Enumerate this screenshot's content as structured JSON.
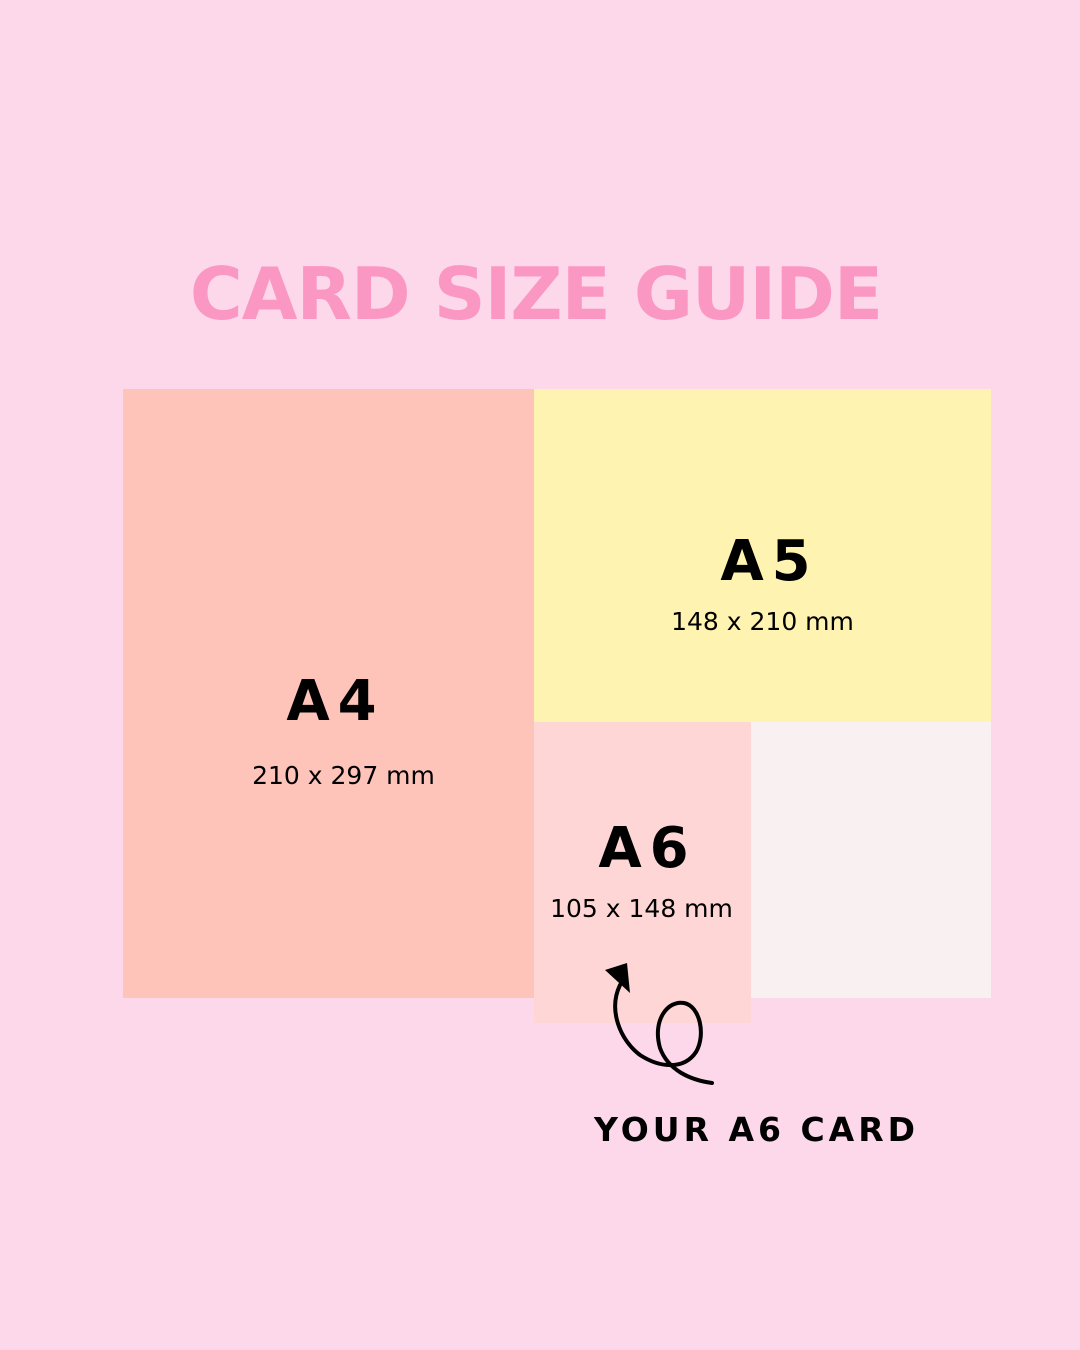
{
  "title": "CARD SIZE GUIDE",
  "sizes": [
    {
      "name": "A4",
      "dimensions": "210 x 297 mm",
      "color": "#fec3b9"
    },
    {
      "name": "A5",
      "dimensions": "148 x 210 mm",
      "color": "#fff3b1"
    },
    {
      "name": "A6",
      "dimensions": "105 x 148 mm",
      "color": "#fed6d6"
    }
  ],
  "blank_color": "#f9f1f1",
  "background_color": "#fdd7ea",
  "title_color": "#fb97c3",
  "caption": "YOUR A6 CARD",
  "arrow_icon": "curly-arrow-up"
}
